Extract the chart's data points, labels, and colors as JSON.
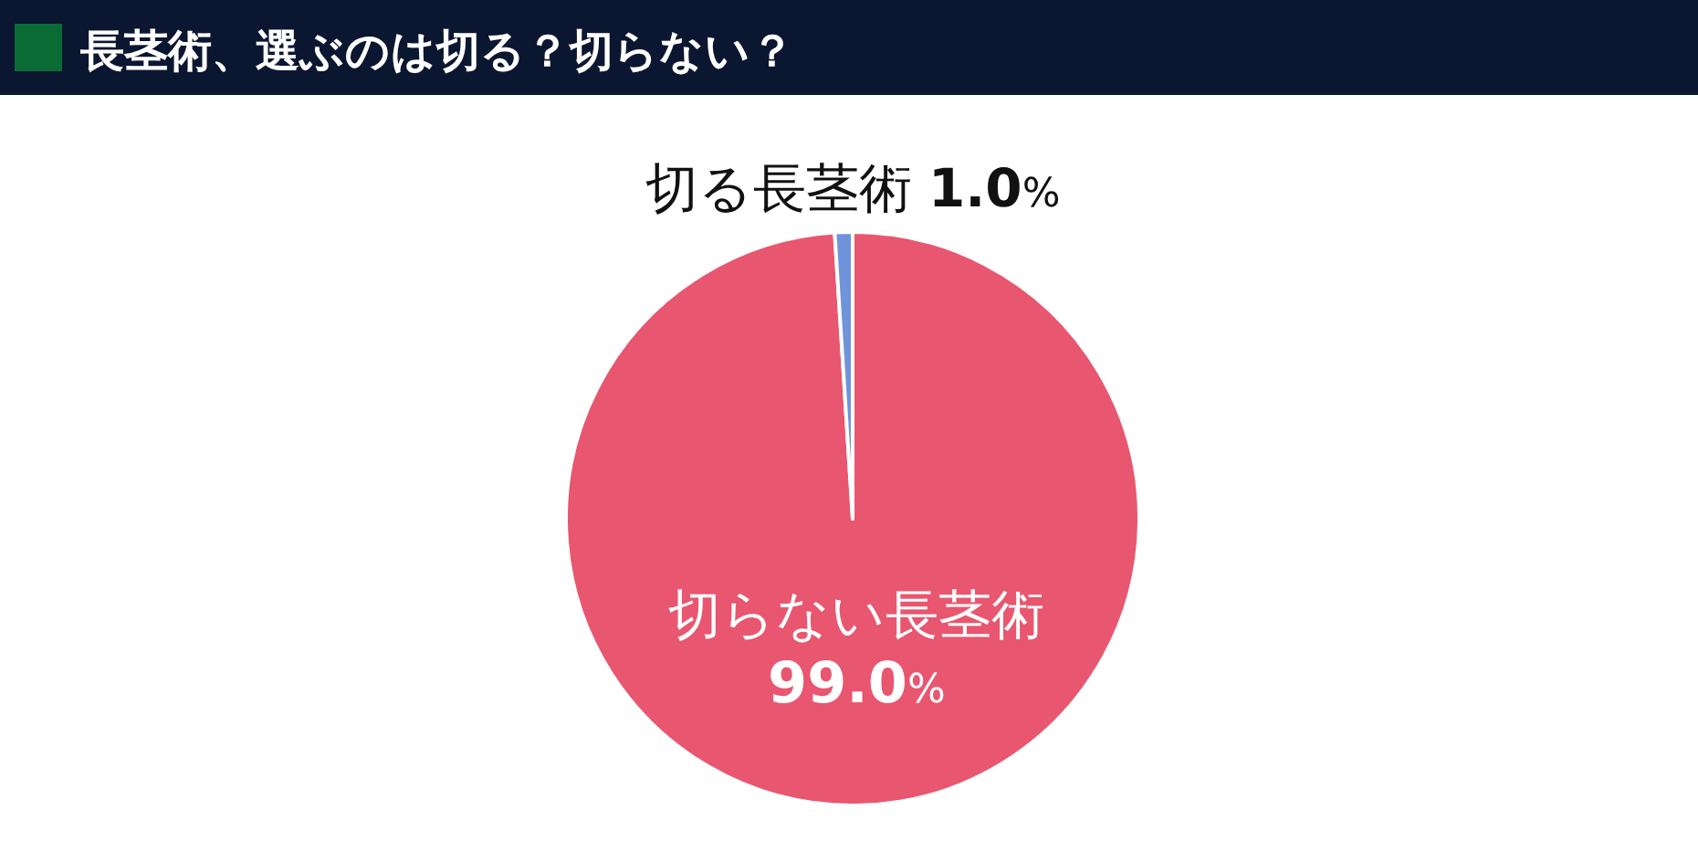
{
  "chart_data": {
    "type": "pie",
    "title": "長茎術、選ぶのは切る？切らない？",
    "categories": [
      "切らない長茎術",
      "切る長茎術"
    ],
    "values": [
      99.0,
      1.0
    ],
    "colors": [
      "#e9566f",
      "#6f94dc"
    ],
    "value_labels": [
      "99.0%",
      "1.0%"
    ],
    "legend": false
  }
}
